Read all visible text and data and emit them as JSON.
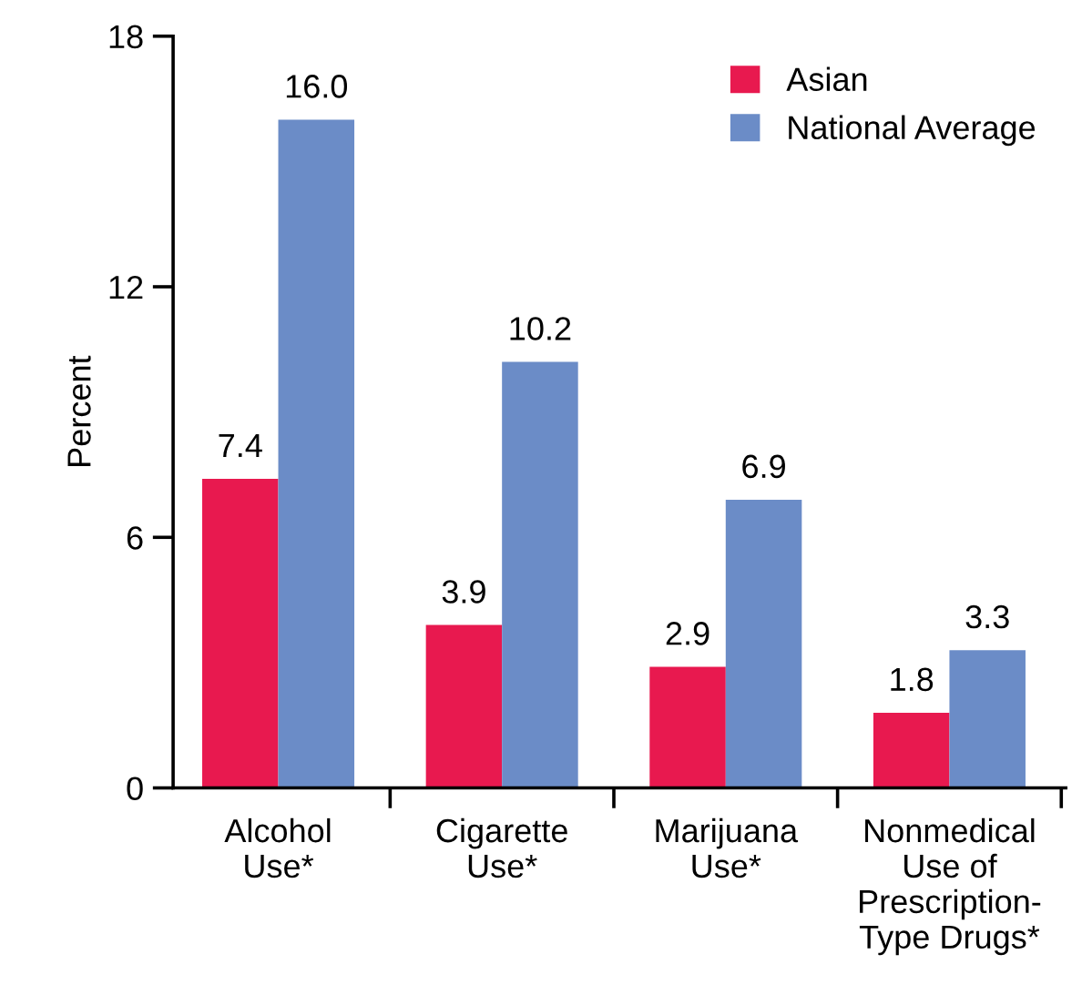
{
  "chart_data": {
    "type": "bar",
    "ylabel": "Percent",
    "categories": [
      "Alcohol\nUse*",
      "Cigarette\nUse*",
      "Marijuana\nUse*",
      "Nonmedical\nUse of\nPrescription-\nType Drugs*"
    ],
    "series": [
      {
        "name": "Asian",
        "color": "#e8194f",
        "values": [
          7.4,
          3.9,
          2.9,
          1.8
        ]
      },
      {
        "name": "National Average",
        "color": "#6b8cc7",
        "values": [
          16.0,
          10.2,
          6.9,
          3.3
        ],
        "value_labels": [
          "16.0",
          "10.2",
          "6.9",
          "3.3"
        ]
      }
    ],
    "ylim": [
      0,
      18
    ],
    "yticks": [
      0,
      6,
      12,
      18
    ],
    "grid": false,
    "legend": "top right",
    "data_labels": true
  }
}
